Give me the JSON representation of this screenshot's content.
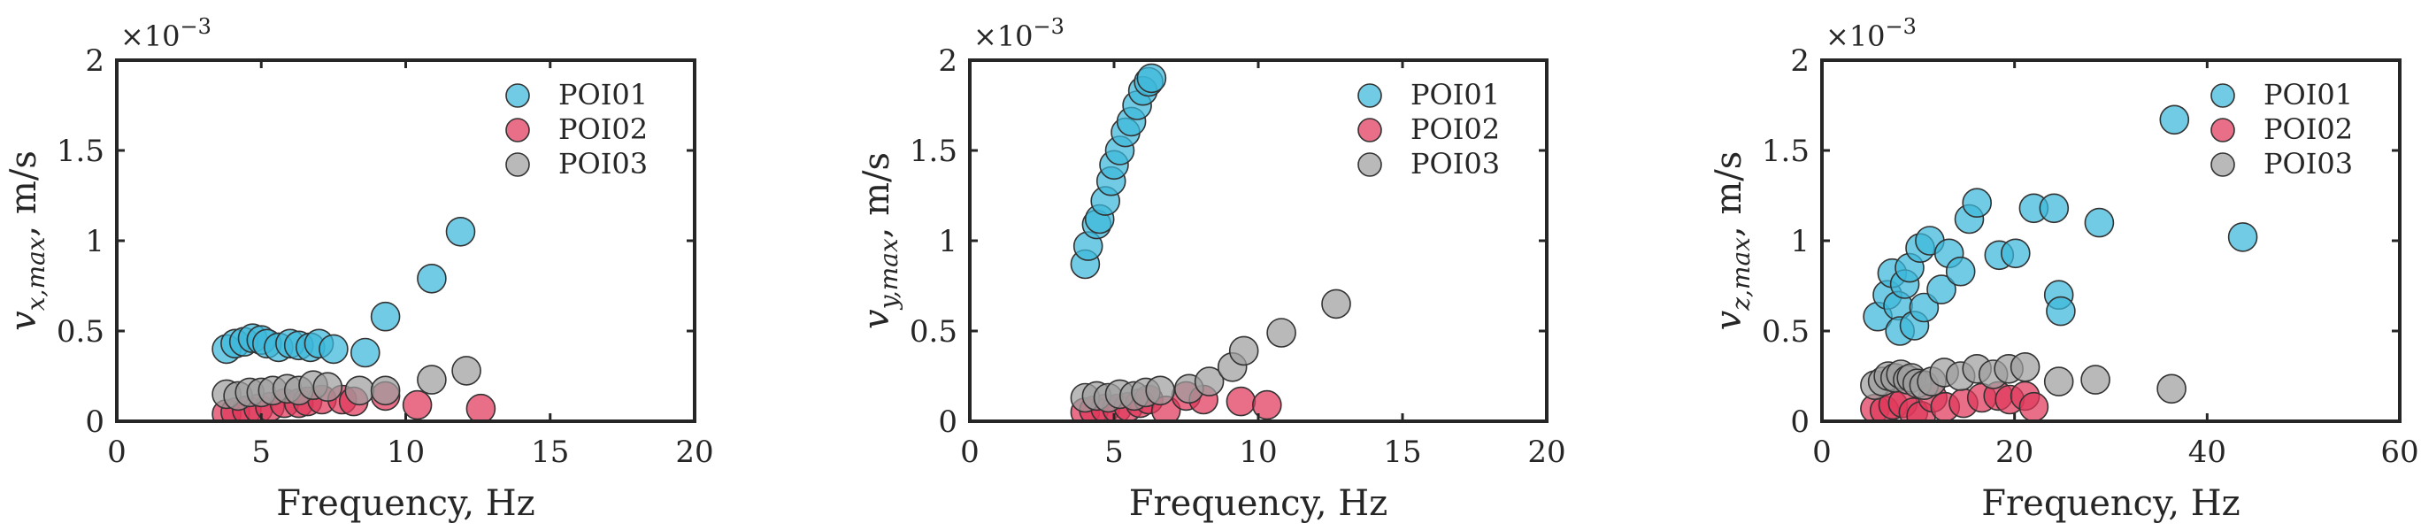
{
  "chart_data": [
    {
      "type": "scatter",
      "xlabel": "Frequency, Hz",
      "ylabel": "v_{x,max}, m/s",
      "ylabel_base": "v",
      "ylabel_sub": "x,max",
      "ylabel_unit": ", m/s",
      "y_exponent": "×10",
      "y_exponent_power": "−3",
      "xlim": [
        0,
        20
      ],
      "ylim": [
        0,
        2
      ],
      "xticks": [
        0,
        5,
        10,
        15,
        20
      ],
      "yticks": [
        0,
        0.5,
        1,
        1.5,
        2
      ],
      "xtick_labels": [
        "0",
        "5",
        "10",
        "15",
        "20"
      ],
      "ytick_labels": [
        "0",
        "0.5",
        "1",
        "1.5",
        "2"
      ],
      "y_unit_scale": "1e-3",
      "grid": false,
      "legend_position": "top-right",
      "series": [
        {
          "name": "POI01",
          "color": "#3cb7d9",
          "x": [
            3.8,
            4.1,
            4.4,
            4.7,
            5.0,
            5.2,
            5.6,
            6.0,
            6.3,
            6.7,
            7.0,
            7.5,
            8.6,
            9.3,
            10.9,
            11.9
          ],
          "y": [
            0.4,
            0.43,
            0.44,
            0.46,
            0.45,
            0.43,
            0.41,
            0.43,
            0.42,
            0.41,
            0.43,
            0.4,
            0.38,
            0.58,
            0.79,
            1.05
          ]
        },
        {
          "name": "POI02",
          "color": "#e0375a",
          "x": [
            3.8,
            4.1,
            4.5,
            4.9,
            5.3,
            5.8,
            6.3,
            6.6,
            7.1,
            7.8,
            8.2,
            9.3,
            10.4,
            12.6
          ],
          "y": [
            0.04,
            0.05,
            0.06,
            0.07,
            0.08,
            0.1,
            0.1,
            0.11,
            0.12,
            0.12,
            0.11,
            0.14,
            0.09,
            0.07
          ]
        },
        {
          "name": "POI03",
          "color": "#9e9e9e",
          "x": [
            3.8,
            4.2,
            4.6,
            5.0,
            5.4,
            5.9,
            6.3,
            6.8,
            7.3,
            8.4,
            9.3,
            10.9,
            12.1
          ],
          "y": [
            0.15,
            0.14,
            0.16,
            0.16,
            0.17,
            0.18,
            0.17,
            0.2,
            0.19,
            0.17,
            0.17,
            0.23,
            0.28
          ]
        }
      ]
    },
    {
      "type": "scatter",
      "xlabel": "Frequency, Hz",
      "ylabel": "v_{y,max}, m/s",
      "ylabel_base": "v",
      "ylabel_sub": "y,max",
      "ylabel_unit": ", m/s",
      "y_exponent": "×10",
      "y_exponent_power": "−3",
      "xlim": [
        0,
        20
      ],
      "ylim": [
        0,
        2
      ],
      "xticks": [
        0,
        5,
        10,
        15,
        20
      ],
      "yticks": [
        0,
        0.5,
        1,
        1.5,
        2
      ],
      "xtick_labels": [
        "0",
        "5",
        "10",
        "15",
        "20"
      ],
      "ytick_labels": [
        "0",
        "0.5",
        "1",
        "1.5",
        "2"
      ],
      "y_unit_scale": "1e-3",
      "grid": false,
      "legend_position": "top-right",
      "series": [
        {
          "name": "POI01",
          "color": "#3cb7d9",
          "x": [
            4.0,
            4.1,
            4.4,
            4.5,
            4.7,
            4.9,
            5.0,
            5.2,
            5.4,
            5.6,
            5.8,
            6.0,
            6.2,
            6.3
          ],
          "y": [
            0.87,
            0.97,
            1.09,
            1.12,
            1.22,
            1.33,
            1.42,
            1.5,
            1.6,
            1.66,
            1.75,
            1.83,
            1.88,
            1.9
          ]
        },
        {
          "name": "POI02",
          "color": "#e0375a",
          "x": [
            4.0,
            4.3,
            4.7,
            5.1,
            5.5,
            5.9,
            6.2,
            6.8,
            7.5,
            8.1,
            9.4,
            10.3
          ],
          "y": [
            0.05,
            0.06,
            0.07,
            0.07,
            0.08,
            0.1,
            0.12,
            0.06,
            0.14,
            0.12,
            0.11,
            0.09
          ]
        },
        {
          "name": "POI03",
          "color": "#9e9e9e",
          "x": [
            4.0,
            4.4,
            4.8,
            5.2,
            5.7,
            6.1,
            6.6,
            7.6,
            8.3,
            9.1,
            9.5,
            10.8,
            12.7
          ],
          "y": [
            0.13,
            0.14,
            0.13,
            0.15,
            0.14,
            0.16,
            0.17,
            0.18,
            0.22,
            0.3,
            0.39,
            0.49,
            0.65
          ]
        }
      ]
    },
    {
      "type": "scatter",
      "xlabel": "Frequency, Hz",
      "ylabel": "v_{z,max}, m/s",
      "ylabel_base": "v",
      "ylabel_sub": "z,max",
      "ylabel_unit": ", m/s",
      "y_exponent": "×10",
      "y_exponent_power": "−3",
      "xlim": [
        0,
        60
      ],
      "ylim": [
        0,
        2
      ],
      "xticks": [
        0,
        20,
        40,
        60
      ],
      "yticks": [
        0,
        0.5,
        1,
        1.5,
        2
      ],
      "xtick_labels": [
        "0",
        "20",
        "40",
        "60"
      ],
      "ytick_labels": [
        "0",
        "0.5",
        "1",
        "1.5",
        "2"
      ],
      "y_unit_scale": "1e-3",
      "grid": false,
      "legend_position": "top-right",
      "series": [
        {
          "name": "POI01",
          "color": "#3cb7d9",
          "x": [
            5.8,
            6.8,
            7.3,
            7.9,
            8.1,
            8.6,
            9.1,
            9.6,
            10.2,
            10.6,
            11.2,
            12.4,
            13.2,
            14.4,
            15.3,
            16.1,
            18.4,
            20.1,
            22.0,
            24.1,
            24.6,
            24.8,
            28.8,
            36.6,
            43.7
          ],
          "y": [
            0.58,
            0.7,
            0.82,
            0.64,
            0.5,
            0.76,
            0.85,
            0.53,
            0.96,
            0.63,
            1.0,
            0.73,
            0.93,
            0.83,
            1.12,
            1.21,
            0.92,
            0.93,
            1.18,
            1.18,
            0.7,
            0.61,
            1.1,
            1.67,
            1.02
          ]
        },
        {
          "name": "POI02",
          "color": "#e0375a",
          "x": [
            5.5,
            6.5,
            7.4,
            8.4,
            9.5,
            10.3,
            11.5,
            12.8,
            14.7,
            16.6,
            18.3,
            19.5,
            21.1,
            22.0
          ],
          "y": [
            0.07,
            0.06,
            0.09,
            0.1,
            0.05,
            0.03,
            0.13,
            0.08,
            0.1,
            0.13,
            0.14,
            0.12,
            0.14,
            0.08
          ]
        },
        {
          "name": "POI03",
          "color": "#9e9e9e",
          "x": [
            5.5,
            6.3,
            6.9,
            7.6,
            8.2,
            8.9,
            9.3,
            9.9,
            10.6,
            11.4,
            12.7,
            14.4,
            16.1,
            17.8,
            19.4,
            21.1,
            24.6,
            28.4,
            36.3
          ],
          "y": [
            0.2,
            0.22,
            0.25,
            0.24,
            0.26,
            0.23,
            0.24,
            0.21,
            0.2,
            0.22,
            0.27,
            0.25,
            0.29,
            0.26,
            0.29,
            0.3,
            0.22,
            0.23,
            0.18
          ]
        }
      ]
    }
  ]
}
